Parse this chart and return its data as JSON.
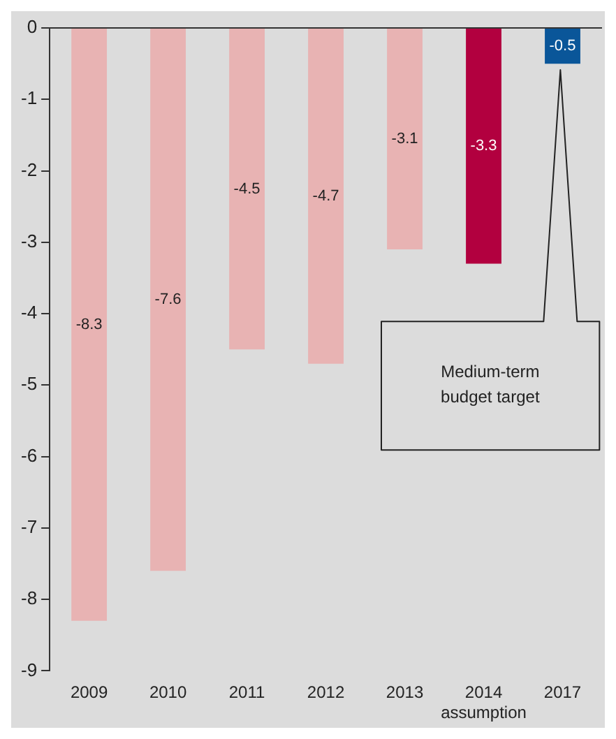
{
  "chart_data": {
    "type": "bar",
    "categories": [
      "2009",
      "2010",
      "2011",
      "2012",
      "2013",
      "2014\nassumption",
      "2017"
    ],
    "values": [
      -8.3,
      -7.6,
      -4.5,
      -4.7,
      -3.1,
      -3.3,
      -0.5
    ],
    "colors": [
      "#e8b3b3",
      "#e8b3b3",
      "#e8b3b3",
      "#e8b3b3",
      "#e8b3b3",
      "#b2003f",
      "#0a5699"
    ],
    "ylim": [
      -9,
      0
    ],
    "yticks": [
      -9,
      -8,
      -7,
      -6,
      -5,
      -4,
      -3,
      -2,
      -1,
      0
    ],
    "data_labels": true,
    "grid": false,
    "legend": false,
    "annotations": [
      "Medium-term budget target"
    ]
  }
}
